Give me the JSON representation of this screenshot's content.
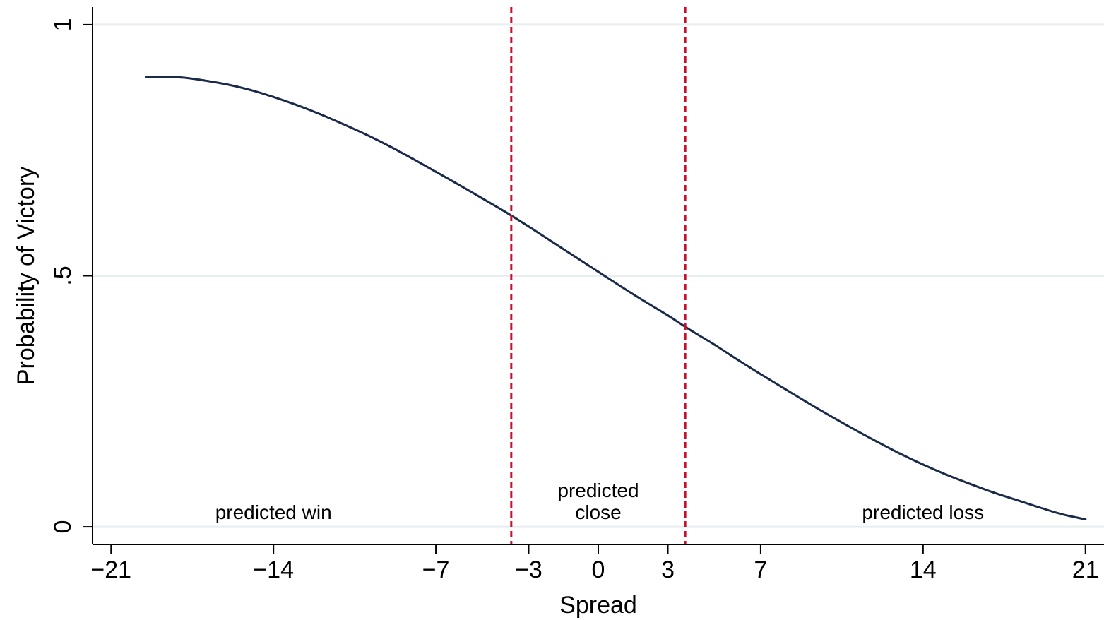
{
  "chart_data": {
    "type": "line",
    "title": "",
    "xlabel": "Spread",
    "ylabel": "Probability of Victory",
    "xlim": [
      -21.8,
      21.8
    ],
    "ylim": [
      -0.035,
      1.035
    ],
    "grid": "horizontal",
    "xticks": [
      {
        "value": -21,
        "label": "−21"
      },
      {
        "value": -14,
        "label": "−14"
      },
      {
        "value": -7,
        "label": "−7"
      },
      {
        "value": -3,
        "label": "−3"
      },
      {
        "value": 0,
        "label": "0"
      },
      {
        "value": 3,
        "label": "3"
      },
      {
        "value": 7,
        "label": "7"
      },
      {
        "value": 14,
        "label": "14"
      },
      {
        "value": 21,
        "label": "21"
      }
    ],
    "yticks": [
      {
        "value": 0,
        "label": "0"
      },
      {
        "value": 0.5,
        "label": ".5"
      },
      {
        "value": 1,
        "label": "1"
      }
    ],
    "series": [
      {
        "color": "#1a2a4a",
        "x": [
          -19.5,
          -18,
          -17,
          -16,
          -15,
          -14,
          -13,
          -12,
          -11,
          -10,
          -9,
          -8,
          -7,
          -6,
          -5,
          -4,
          -3,
          -2,
          -1,
          0,
          1,
          2,
          3,
          4,
          5,
          6,
          7,
          8,
          9,
          10,
          11,
          12,
          13,
          14,
          15,
          16,
          17,
          18,
          19,
          20,
          21
        ],
        "y": [
          0.896,
          0.895,
          0.889,
          0.881,
          0.87,
          0.856,
          0.84,
          0.822,
          0.802,
          0.781,
          0.758,
          0.733,
          0.707,
          0.681,
          0.654,
          0.627,
          0.598,
          0.568,
          0.538,
          0.508,
          0.478,
          0.449,
          0.421,
          0.391,
          0.363,
          0.333,
          0.304,
          0.276,
          0.248,
          0.221,
          0.195,
          0.17,
          0.146,
          0.124,
          0.104,
          0.086,
          0.069,
          0.054,
          0.039,
          0.025,
          0.015
        ]
      }
    ],
    "reference_lines": [
      {
        "axis": "x",
        "value": -3.75,
        "color": "#c8102e",
        "style": "dashed"
      },
      {
        "axis": "x",
        "value": 3.75,
        "color": "#c8102e",
        "style": "dashed"
      }
    ],
    "annotations": [
      {
        "lines": [
          "predicted win"
        ],
        "x": -14,
        "y": 0.03
      },
      {
        "lines": [
          "predicted",
          "close"
        ],
        "x": 0,
        "y": 0.03
      },
      {
        "lines": [
          "predicted loss"
        ],
        "x": 14,
        "y": 0.03
      }
    ]
  }
}
